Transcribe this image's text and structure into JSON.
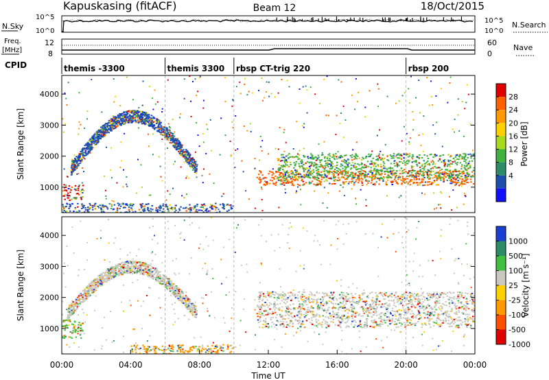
{
  "header": {
    "station": "Kapuskasing (fitACF)",
    "beam": "Beam 12",
    "date": "18/Oct/2015"
  },
  "nsky_panel": {
    "left_label": "N.Sky",
    "right_label": "N.Search",
    "left_ticks": [
      "10^5",
      "10^0"
    ],
    "right_ticks": [
      "10^5",
      "10^0"
    ]
  },
  "freq_panel": {
    "left_label_line1": "Freq.",
    "left_label_line2": "[MHz]",
    "right_label": "Nave",
    "left_ticks": [
      "12",
      "8"
    ],
    "right_ticks": [
      "60",
      "0"
    ]
  },
  "cpid": {
    "label": "CPID",
    "segments": [
      {
        "name": "themis -3300",
        "start_hour": 0
      },
      {
        "name": "themis 3300",
        "start_hour": 6
      },
      {
        "name": "rbsp CT-trig 220",
        "start_hour": 10
      },
      {
        "name": "rbsp 200",
        "start_hour": 20
      }
    ]
  },
  "chart_data": [
    {
      "type": "heatmap",
      "name": "power",
      "xlabel": "",
      "ylabel": "Slant Range [km]",
      "xlim": [
        0,
        24
      ],
      "ylim": [
        180,
        4600
      ],
      "yticks": [
        1000,
        2000,
        3000,
        4000
      ],
      "colorbar": {
        "label": "Power [dB]",
        "ticks": [
          "28",
          "24",
          "20",
          "16",
          "12",
          "8",
          "4"
        ],
        "colors": [
          "#e00000",
          "#ff6000",
          "#ff9900",
          "#ffd000",
          "#a8d820",
          "#40b040",
          "#2e8b6a",
          "#1e4fb0",
          "#1010ff"
        ]
      },
      "features": [
        {
          "kind": "band",
          "x0": 11.3,
          "x1": 24,
          "y0": 1080,
          "y1": 1550,
          "color": "#ff6000"
        },
        {
          "kind": "band",
          "x0": 12.5,
          "x1": 24,
          "y0": 1300,
          "y1": 2100,
          "color": "#40b040"
        },
        {
          "kind": "band",
          "x0": 0,
          "x1": 1.2,
          "y0": 600,
          "y1": 1100,
          "color": "#e00000"
        },
        {
          "kind": "arc",
          "x0": 0.5,
          "x1": 7.8,
          "y0": 1600,
          "y1": 3300,
          "color": "#1e4fb0"
        },
        {
          "kind": "band",
          "x0": 0,
          "x1": 10,
          "y0": 200,
          "y1": 500,
          "color": "#1e4fb0"
        }
      ]
    },
    {
      "type": "heatmap",
      "name": "velocity",
      "xlabel": "Time UT",
      "ylabel": "Slant Range [km]",
      "xlim": [
        0,
        24
      ],
      "ylim": [
        180,
        4600
      ],
      "xticks": [
        "00:00",
        "04:00",
        "08:00",
        "12:00",
        "16:00",
        "20:00",
        "00:00"
      ],
      "yticks": [
        1000,
        2000,
        3000,
        4000
      ],
      "colorbar": {
        "label": "Velocity [m s⁻¹]",
        "ticks": [
          "1000",
          "500",
          "100",
          "25",
          "-25",
          "-100",
          "-500",
          "-1000"
        ],
        "colors": [
          "#1a3fd0",
          "#2e8b6a",
          "#40c040",
          "#c8c8c0",
          "#ffd000",
          "#ff9900",
          "#ff5000",
          "#e00000"
        ]
      },
      "features": [
        {
          "kind": "band",
          "x0": 11.3,
          "x1": 24,
          "y0": 1050,
          "y1": 2200,
          "color": "#c8c8c0"
        },
        {
          "kind": "arc",
          "x0": 0.3,
          "x1": 7.8,
          "y0": 1500,
          "y1": 3000,
          "color": "#c8c8c0"
        },
        {
          "kind": "band",
          "x0": 0,
          "x1": 1.2,
          "y0": 700,
          "y1": 1300,
          "color": "#40c040"
        },
        {
          "kind": "band",
          "x0": 4,
          "x1": 10,
          "y0": 200,
          "y1": 500,
          "color": "#ff9900"
        }
      ]
    }
  ]
}
